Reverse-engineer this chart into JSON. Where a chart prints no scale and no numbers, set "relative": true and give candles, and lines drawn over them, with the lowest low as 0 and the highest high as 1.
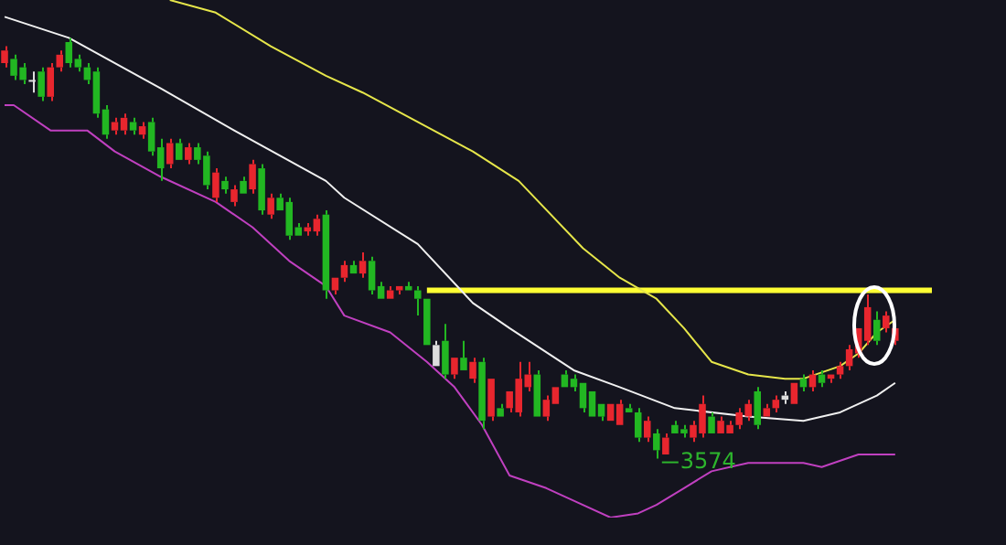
{
  "chart_data": {
    "type": "candlestick",
    "relative": true,
    "categories": [
      null,
      null,
      null,
      null,
      null,
      null,
      null,
      null,
      null,
      null,
      null,
      null,
      null,
      null,
      null,
      null,
      null,
      null,
      null,
      null,
      null,
      null,
      null,
      null,
      null,
      null,
      null,
      null,
      null,
      null,
      null,
      null,
      null,
      null,
      null,
      null,
      null,
      null,
      null,
      null,
      null,
      null,
      null,
      null,
      null,
      null,
      null,
      null,
      null,
      null,
      null,
      null,
      null,
      null,
      null,
      null,
      null,
      null,
      null,
      null,
      null,
      null,
      null,
      null,
      null,
      null,
      null,
      null,
      null,
      null,
      null,
      null,
      null,
      null,
      null,
      null,
      null,
      null,
      null,
      null,
      null,
      null,
      null,
      null,
      null,
      null,
      null,
      null,
      null,
      null,
      null,
      null,
      null,
      null,
      null,
      null,
      null,
      null,
      null,
      null,
      null,
      null
    ],
    "ohlc": [
      [
        0.94,
        0.98,
        0.93,
        0.97
      ],
      [
        0.95,
        0.96,
        0.9,
        0.91
      ],
      [
        0.93,
        0.94,
        0.89,
        0.9
      ],
      [
        0.9,
        0.92,
        0.87,
        0.9
      ],
      [
        0.92,
        0.93,
        0.85,
        0.86
      ],
      [
        0.86,
        0.94,
        0.85,
        0.93
      ],
      [
        0.93,
        0.97,
        0.92,
        0.96
      ],
      [
        0.99,
        1.0,
        0.93,
        0.94
      ],
      [
        0.95,
        0.96,
        0.92,
        0.93
      ],
      [
        0.93,
        0.94,
        0.89,
        0.9
      ],
      [
        0.92,
        0.93,
        0.81,
        0.82
      ],
      [
        0.83,
        0.84,
        0.76,
        0.77
      ],
      [
        0.78,
        0.81,
        0.77,
        0.8
      ],
      [
        0.78,
        0.82,
        0.77,
        0.81
      ],
      [
        0.8,
        0.81,
        0.77,
        0.78
      ],
      [
        0.77,
        0.8,
        0.76,
        0.79
      ],
      [
        0.8,
        0.81,
        0.72,
        0.73
      ],
      [
        0.74,
        0.76,
        0.66,
        0.69
      ],
      [
        0.7,
        0.76,
        0.69,
        0.75
      ],
      [
        0.75,
        0.76,
        0.71,
        0.71
      ],
      [
        0.71,
        0.75,
        0.7,
        0.74
      ],
      [
        0.74,
        0.75,
        0.7,
        0.71
      ],
      [
        0.72,
        0.73,
        0.64,
        0.65
      ],
      [
        0.62,
        0.69,
        0.61,
        0.68
      ],
      [
        0.66,
        0.67,
        0.63,
        0.64
      ],
      [
        0.61,
        0.65,
        0.6,
        0.64
      ],
      [
        0.66,
        0.67,
        0.63,
        0.63
      ],
      [
        0.64,
        0.71,
        0.63,
        0.7
      ],
      [
        0.69,
        0.7,
        0.58,
        0.59
      ],
      [
        0.58,
        0.63,
        0.57,
        0.62
      ],
      [
        0.62,
        0.63,
        0.59,
        0.59
      ],
      [
        0.61,
        0.62,
        0.52,
        0.53
      ],
      [
        0.55,
        0.56,
        0.53,
        0.53
      ],
      [
        0.54,
        0.56,
        0.53,
        0.55
      ],
      [
        0.54,
        0.58,
        0.53,
        0.57
      ],
      [
        0.58,
        0.59,
        0.38,
        0.4
      ],
      [
        0.4,
        0.43,
        0.39,
        0.43
      ],
      [
        0.43,
        0.47,
        0.42,
        0.46
      ],
      [
        0.46,
        0.47,
        0.44,
        0.44
      ],
      [
        0.44,
        0.49,
        0.43,
        0.47
      ],
      [
        0.47,
        0.48,
        0.39,
        0.4
      ],
      [
        0.41,
        0.42,
        0.38,
        0.38
      ],
      [
        0.38,
        0.41,
        0.38,
        0.4
      ],
      [
        0.4,
        0.41,
        0.39,
        0.41
      ],
      [
        0.41,
        0.42,
        0.4,
        0.4
      ],
      [
        0.4,
        0.41,
        0.34,
        0.38
      ],
      [
        0.38,
        0.38,
        0.27,
        0.27
      ],
      [
        0.22,
        0.28,
        0.22,
        0.27
      ],
      [
        0.28,
        0.32,
        0.19,
        0.2
      ],
      [
        0.2,
        0.24,
        0.19,
        0.24
      ],
      [
        0.24,
        0.28,
        0.21,
        0.21
      ],
      [
        0.19,
        0.24,
        0.18,
        0.23
      ],
      [
        0.23,
        0.24,
        0.07,
        0.09
      ],
      [
        0.1,
        0.19,
        0.09,
        0.19
      ],
      [
        0.12,
        0.13,
        0.1,
        0.1
      ],
      [
        0.12,
        0.16,
        0.11,
        0.16
      ],
      [
        0.11,
        0.23,
        0.1,
        0.19
      ],
      [
        0.17,
        0.23,
        0.16,
        0.2
      ],
      [
        0.2,
        0.21,
        0.1,
        0.1
      ],
      [
        0.1,
        0.15,
        0.09,
        0.14
      ],
      [
        0.13,
        0.17,
        0.13,
        0.17
      ],
      [
        0.2,
        0.21,
        0.17,
        0.17
      ],
      [
        0.19,
        0.2,
        0.16,
        0.17
      ],
      [
        0.18,
        0.18,
        0.11,
        0.12
      ],
      [
        0.16,
        0.16,
        0.1,
        0.1
      ],
      [
        0.13,
        0.13,
        0.09,
        0.1
      ],
      [
        0.09,
        0.13,
        0.09,
        0.13
      ],
      [
        0.08,
        0.14,
        0.08,
        0.13
      ],
      [
        0.12,
        0.13,
        0.11,
        0.11
      ],
      [
        0.11,
        0.12,
        0.04,
        0.05
      ],
      [
        0.05,
        0.1,
        0.04,
        0.09
      ],
      [
        0.06,
        0.07,
        0.0,
        0.02
      ],
      [
        0.01,
        0.06,
        0.01,
        0.05
      ],
      [
        0.08,
        0.09,
        0.06,
        0.06
      ],
      [
        0.07,
        0.08,
        0.05,
        0.06
      ],
      [
        0.05,
        0.09,
        0.04,
        0.08
      ],
      [
        0.06,
        0.15,
        0.05,
        0.13
      ],
      [
        0.1,
        0.11,
        0.06,
        0.06
      ],
      [
        0.06,
        0.1,
        0.06,
        0.09
      ],
      [
        0.06,
        0.09,
        0.06,
        0.08
      ],
      [
        0.08,
        0.12,
        0.07,
        0.11
      ],
      [
        0.1,
        0.14,
        0.09,
        0.13
      ],
      [
        0.16,
        0.17,
        0.07,
        0.08
      ],
      [
        0.1,
        0.13,
        0.1,
        0.12
      ],
      [
        0.12,
        0.15,
        0.11,
        0.14
      ],
      [
        0.15,
        0.16,
        0.13,
        0.14
      ],
      [
        0.13,
        0.18,
        0.13,
        0.18
      ],
      [
        0.19,
        0.2,
        0.16,
        0.17
      ],
      [
        0.17,
        0.21,
        0.16,
        0.2
      ],
      [
        0.2,
        0.21,
        0.17,
        0.18
      ],
      [
        0.19,
        0.2,
        0.18,
        0.2
      ],
      [
        0.2,
        0.23,
        0.19,
        0.22
      ],
      [
        0.22,
        0.27,
        0.21,
        0.26
      ],
      [
        0.25,
        0.31,
        0.24,
        0.31
      ],
      [
        0.28,
        0.39,
        0.27,
        0.36
      ],
      [
        0.33,
        0.35,
        0.27,
        0.28
      ],
      [
        0.31,
        0.35,
        0.3,
        0.34
      ],
      [
        0.28,
        0.31,
        0.27,
        0.31
      ],
      null,
      null,
      null,
      null
    ],
    "colors": [
      "#e8262e",
      "#22b722",
      "#22b722",
      "#dddddd",
      "#22b722",
      "#e8262e",
      "#e8262e",
      "#22b722",
      "#22b722",
      "#22b722",
      "#22b722",
      "#22b722",
      "#e8262e",
      "#e8262e",
      "#22b722",
      "#e8262e",
      "#22b722",
      "#22b722",
      "#e8262e",
      "#22b722",
      "#e8262e",
      "#22b722",
      "#22b722",
      "#e8262e",
      "#22b722",
      "#e8262e",
      "#22b722",
      "#e8262e",
      "#22b722",
      "#e8262e",
      "#22b722",
      "#22b722",
      "#22b722",
      "#e8262e",
      "#e8262e",
      "#22b722",
      "#e8262e",
      "#e8262e",
      "#22b722",
      "#e8262e",
      "#22b722",
      "#22b722",
      "#e8262e",
      "#e8262e",
      "#22b722",
      "#22b722",
      "#22b722",
      "#dddddd",
      "#22b722",
      "#e8262e",
      "#22b722",
      "#e8262e",
      "#22b722",
      "#e8262e",
      "#22b722",
      "#e8262e",
      "#e8262e",
      "#e8262e",
      "#22b722",
      "#e8262e",
      "#e8262e",
      "#22b722",
      "#22b722",
      "#22b722",
      "#22b722",
      "#22b722",
      "#e8262e",
      "#e8262e",
      "#22b722",
      "#22b722",
      "#e8262e",
      "#22b722",
      "#e8262e",
      "#22b722",
      "#22b722",
      "#e8262e",
      "#e8262e",
      "#22b722",
      "#e8262e",
      "#e8262e",
      "#e8262e",
      "#e8262e",
      "#22b722",
      "#e8262e",
      "#e8262e",
      "#dddddd",
      "#e8262e",
      "#22b722",
      "#e8262e",
      "#22b722",
      "#e8262e",
      "#e8262e",
      "#e8262e",
      "#e8262e",
      "#e8262e",
      "#22b722",
      "#e8262e",
      "#e8262e",
      null,
      null,
      null,
      null
    ],
    "series": [
      {
        "type": "line",
        "color": "#f0f0f0",
        "values": [
          1.05,
          null,
          null,
          null,
          null,
          null,
          null,
          1.0,
          null,
          null,
          null,
          null,
          null,
          null,
          null,
          null,
          null,
          0.88,
          null,
          null,
          null,
          null,
          null,
          null,
          null,
          0.78,
          null,
          null,
          null,
          null,
          null,
          null,
          null,
          null,
          null,
          0.66,
          null,
          0.62,
          null,
          null,
          null,
          null,
          null,
          null,
          null,
          0.51,
          null,
          null,
          null,
          null,
          null,
          0.37,
          null,
          null,
          null,
          0.31,
          null,
          null,
          null,
          null,
          null,
          null,
          0.21,
          null,
          null,
          null,
          null,
          0.17,
          null,
          null,
          null,
          null,
          null,
          0.12,
          null,
          null,
          null,
          null,
          null,
          null,
          null,
          0.1,
          null,
          null,
          null,
          null,
          null,
          0.09,
          null,
          null,
          null,
          0.11,
          null,
          null,
          null,
          0.15,
          null,
          0.18,
          null,
          null,
          null,
          null
        ]
      },
      {
        "type": "line",
        "color": "#c040c0",
        "values": [
          0.84,
          0.84,
          null,
          null,
          null,
          0.78,
          null,
          null,
          null,
          0.78,
          null,
          null,
          0.73,
          null,
          null,
          null,
          null,
          0.67,
          null,
          null,
          null,
          null,
          null,
          0.61,
          null,
          null,
          null,
          0.55,
          null,
          null,
          null,
          0.47,
          null,
          null,
          null,
          0.41,
          null,
          0.34,
          null,
          null,
          null,
          null,
          0.3,
          null,
          null,
          null,
          0.23,
          null,
          null,
          0.17,
          null,
          null,
          0.08,
          null,
          null,
          -0.04,
          null,
          null,
          null,
          -0.07,
          null,
          null,
          -0.1,
          null,
          null,
          null,
          -0.14,
          null,
          null,
          -0.13,
          null,
          -0.11,
          null,
          null,
          -0.07,
          null,
          null,
          -0.03,
          null,
          null,
          null,
          -0.01,
          null,
          null,
          null,
          null,
          null,
          -0.01,
          null,
          -0.02,
          null,
          null,
          null,
          0.01,
          null,
          null,
          null,
          0.01,
          null,
          null,
          null,
          null
        ]
      },
      {
        "type": "line",
        "color": "#e6e64a",
        "values": [
          null,
          null,
          null,
          null,
          null,
          null,
          null,
          null,
          null,
          null,
          null,
          null,
          null,
          null,
          null,
          null,
          null,
          null,
          1.09,
          null,
          null,
          null,
          null,
          1.06,
          null,
          null,
          null,
          null,
          null,
          0.98,
          null,
          null,
          null,
          null,
          null,
          0.91,
          null,
          null,
          null,
          0.87,
          null,
          null,
          null,
          null,
          null,
          0.8,
          null,
          null,
          null,
          null,
          null,
          0.73,
          null,
          null,
          null,
          null,
          0.66,
          null,
          null,
          null,
          null,
          null,
          null,
          0.5,
          null,
          null,
          null,
          0.43,
          null,
          null,
          null,
          0.38,
          null,
          null,
          0.31,
          null,
          null,
          0.23,
          null,
          null,
          null,
          0.2,
          null,
          null,
          null,
          0.19,
          null,
          0.19,
          null,
          null,
          null,
          0.22,
          null,
          0.25,
          null,
          0.3,
          null,
          0.33,
          null,
          null,
          null,
          null
        ]
      },
      {
        "type": "line",
        "color": "#ffff33",
        "values": [
          null,
          null,
          null,
          null,
          null,
          null,
          null,
          null,
          null,
          null,
          null,
          null,
          null,
          null,
          null,
          null,
          null,
          null,
          null,
          null,
          null,
          null,
          null,
          null,
          null,
          null,
          null,
          null,
          null,
          null,
          null,
          null,
          null,
          null,
          null,
          null,
          null,
          null,
          null,
          null,
          null,
          null,
          null,
          null,
          null,
          null,
          0.4,
          0.4,
          0.4,
          0.4,
          0.4,
          0.4,
          0.4,
          0.4,
          0.4,
          0.4,
          0.4,
          0.4,
          0.4,
          0.4,
          0.4,
          0.4,
          0.4,
          0.4,
          0.4,
          0.4,
          0.4,
          0.4,
          0.4,
          0.4,
          0.4,
          0.4,
          0.4,
          0.4,
          0.4,
          0.4,
          0.4,
          0.4,
          0.4,
          0.4,
          0.4,
          0.4,
          0.4,
          0.4,
          0.4,
          0.4,
          0.4,
          0.4,
          0.4,
          0.4,
          0.4,
          0.4,
          0.4,
          0.4,
          0.4,
          0.4,
          0.4,
          0.4,
          0.4,
          0.4,
          0.4,
          0.4
        ]
      }
    ],
    "annotations": [
      "3574"
    ]
  }
}
